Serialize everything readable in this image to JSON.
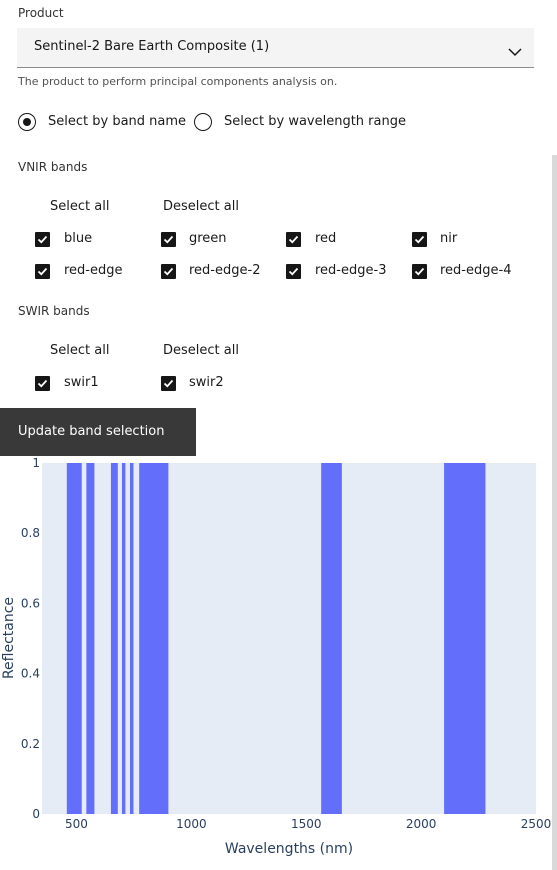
{
  "product": {
    "label": "Product",
    "selected": "Sentinel-2 Bare Earth Composite (1)",
    "helper": "The product to perform principal components analysis on."
  },
  "mode": {
    "options": [
      {
        "label": "Select by band name",
        "selected": true
      },
      {
        "label": "Select by wavelength range",
        "selected": false
      }
    ]
  },
  "vnir": {
    "title": "VNIR bands",
    "select_all": "Select all",
    "deselect_all": "Deselect all",
    "bands": [
      {
        "label": "blue",
        "checked": true
      },
      {
        "label": "green",
        "checked": true
      },
      {
        "label": "red",
        "checked": true
      },
      {
        "label": "nir",
        "checked": true
      },
      {
        "label": "red-edge",
        "checked": true
      },
      {
        "label": "red-edge-2",
        "checked": true
      },
      {
        "label": "red-edge-3",
        "checked": true
      },
      {
        "label": "red-edge-4",
        "checked": true
      }
    ]
  },
  "swir": {
    "title": "SWIR bands",
    "select_all": "Select all",
    "deselect_all": "Deselect all",
    "bands": [
      {
        "label": "swir1",
        "checked": true
      },
      {
        "label": "swir2",
        "checked": true
      }
    ]
  },
  "update_button": "Update band selection",
  "colors": {
    "bar": "#636efa",
    "plot_bg": "#e5ecf6",
    "axis_text": "#2a3f5f"
  },
  "chart_data": {
    "type": "bar",
    "xlabel": "Wavelengths (nm)",
    "ylabel": "Reflectance",
    "xlim": [
      350,
      2500
    ],
    "ylim": [
      0,
      1
    ],
    "xticks": [
      500,
      1000,
      1500,
      2000,
      2500
    ],
    "yticks": [
      0,
      0.2,
      0.4,
      0.6,
      0.8,
      1
    ],
    "ytick_labels": [
      "0",
      "0.2",
      "0.4",
      "0.6",
      "0.8",
      "1"
    ],
    "bands": [
      {
        "start": 458,
        "end": 523,
        "value": 1
      },
      {
        "start": 543,
        "end": 578,
        "value": 1
      },
      {
        "start": 650,
        "end": 680,
        "value": 1
      },
      {
        "start": 698,
        "end": 713,
        "value": 1
      },
      {
        "start": 733,
        "end": 748,
        "value": 1
      },
      {
        "start": 773,
        "end": 793,
        "value": 1
      },
      {
        "start": 785,
        "end": 900,
        "value": 1
      },
      {
        "start": 855,
        "end": 875,
        "value": 1
      },
      {
        "start": 1565,
        "end": 1655,
        "value": 1
      },
      {
        "start": 2100,
        "end": 2280,
        "value": 1
      }
    ]
  }
}
